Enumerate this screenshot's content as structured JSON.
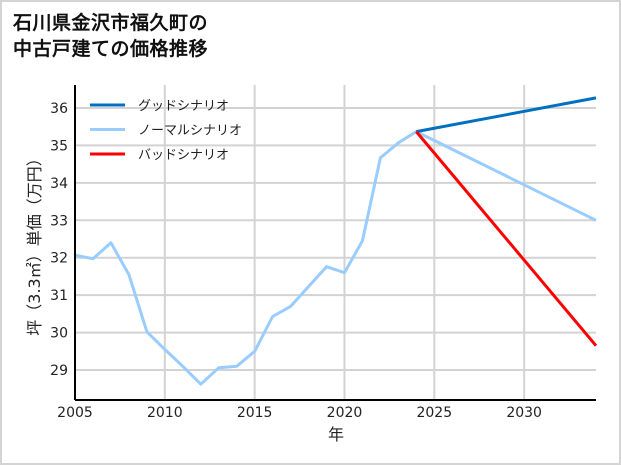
{
  "title": {
    "line1": "石川県金沢市福久町の",
    "line2": "中古戸建ての価格推移"
  },
  "chart_data": {
    "type": "line",
    "title": "石川県金沢市福久町の中古戸建ての価格推移",
    "xlabel": "年",
    "ylabel": "坪（3.3㎡）単価（万円）",
    "xlim": [
      2005,
      2034
    ],
    "ylim": [
      28.2,
      36.6
    ],
    "xticks": [
      2005,
      2010,
      2015,
      2020,
      2025,
      2030
    ],
    "yticks": [
      29,
      30,
      31,
      32,
      33,
      34,
      35,
      36
    ],
    "grid": true,
    "legend_position": "upper left",
    "series": [
      {
        "name": "グッドシナリオ",
        "color": "#0070c0",
        "x": [
          2024,
          2034
        ],
        "y": [
          35.37,
          36.27
        ]
      },
      {
        "name": "ノーマルシナリオ",
        "color": "#99ccff",
        "x": [
          2005,
          2006,
          2007,
          2008,
          2009,
          2010,
          2011,
          2012,
          2013,
          2014,
          2015,
          2016,
          2017,
          2018,
          2019,
          2020,
          2021,
          2022,
          2023,
          2024,
          2034
        ],
        "y": [
          32.07,
          31.97,
          32.4,
          31.55,
          30.02,
          29.55,
          29.1,
          28.62,
          29.06,
          29.1,
          29.5,
          30.43,
          30.7,
          31.23,
          31.76,
          31.6,
          32.45,
          34.67,
          35.07,
          35.37,
          33.0
        ]
      },
      {
        "name": "バッドシナリオ",
        "color": "#ff0000",
        "x": [
          2024,
          2034
        ],
        "y": [
          35.37,
          29.65
        ]
      }
    ]
  }
}
